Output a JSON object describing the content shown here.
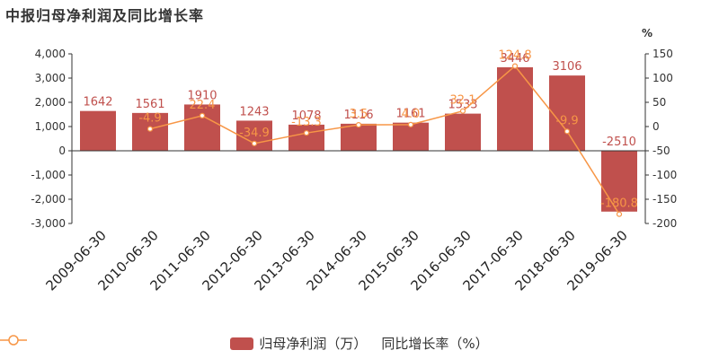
{
  "title": "中报归母净利润及同比增长率",
  "colors": {
    "bar": "#c0504d",
    "line": "#f79646",
    "bar_label": "#c0504d",
    "line_label": "#f79646"
  },
  "chart_data": {
    "type": "bar",
    "categories": [
      "2009-06-30",
      "2010-06-30",
      "2011-06-30",
      "2012-06-30",
      "2013-06-30",
      "2014-06-30",
      "2015-06-30",
      "2016-06-30",
      "2017-06-30",
      "2018-06-30",
      "2019-06-30"
    ],
    "series": [
      {
        "name": "归母净利润（万）",
        "type": "bar",
        "axis": "left",
        "values": [
          1642,
          1561,
          1910,
          1243,
          1078,
          1116,
          1161,
          1533,
          3446,
          3106,
          -2510
        ],
        "labels": [
          "1642",
          "1561",
          "1910",
          "1243",
          "1078",
          "1116",
          "1161",
          "1533",
          "3446",
          "3106",
          "-2510"
        ]
      },
      {
        "name": "同比增长率（%）",
        "type": "line",
        "axis": "right",
        "values": [
          null,
          -4.9,
          22.4,
          -34.9,
          -13.3,
          3.5,
          4.0,
          32.1,
          124.8,
          -9.9,
          -180.8
        ],
        "labels": [
          "",
          "-4.9",
          "22.4",
          "-34.9",
          "-13.3",
          "3.5",
          "4.0",
          "32.1",
          "124.8",
          "-9.9",
          "-180.8"
        ]
      }
    ],
    "y_left": {
      "ylim": [
        -3000,
        4000
      ],
      "ticks": [
        -3000,
        -2000,
        -1000,
        0,
        1000,
        2000,
        3000,
        4000
      ],
      "tick_labels": [
        "-3,000",
        "-2,000",
        "-1,000",
        "0",
        "1,000",
        "2,000",
        "3,000",
        "4,000"
      ]
    },
    "y_right": {
      "ylim": [
        -200,
        150
      ],
      "ticks": [
        -200,
        -150,
        -100,
        -50,
        0,
        50,
        100,
        150
      ],
      "tick_labels": [
        "-200",
        "-150",
        "-100",
        "-50",
        "0",
        "50",
        "100",
        "150"
      ],
      "unit": "%"
    },
    "grid": false,
    "legend_position": "bottom"
  }
}
